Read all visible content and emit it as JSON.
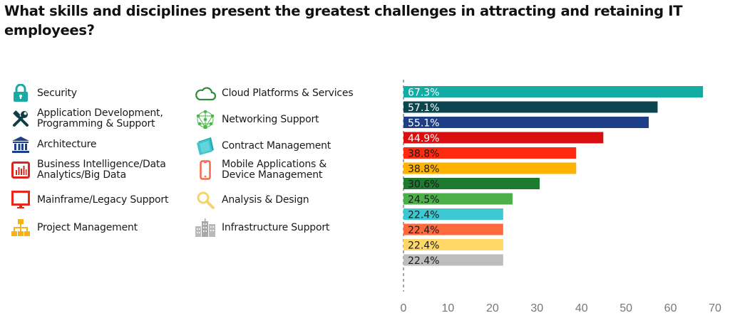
{
  "title": "What skills and disciplines present the greatest challenges in attracting and retaining IT employees?",
  "legend": [
    {
      "label": "Security",
      "icon": "lock-icon",
      "color": "#1aa9a3"
    },
    {
      "label": "Application Development,\nProgramming & Support",
      "icon": "tools-icon",
      "color": "#0d3f47"
    },
    {
      "label": "Architecture",
      "icon": "building-columns-icon",
      "color": "#1f3f8c"
    },
    {
      "label": "Business Intelligence/Data\nAnalytics/Big Data",
      "icon": "bar-chart-icon",
      "color": "#d9261c"
    },
    {
      "label": "Mainframe/Legacy Support",
      "icon": "monitor-icon",
      "color": "#e8261a"
    },
    {
      "label": "Project Management",
      "icon": "org-chart-icon",
      "color": "#f5b21b"
    },
    {
      "label": "Cloud Platforms & Services",
      "icon": "cloud-icon",
      "color": "#2e8b3a"
    },
    {
      "label": "Networking Support",
      "icon": "network-icon",
      "color": "#4cb84a"
    },
    {
      "label": "Contract Management",
      "icon": "documents-icon",
      "color": "#3ec6cf"
    },
    {
      "label": "Mobile Applications &\nDevice Management",
      "icon": "smartphone-icon",
      "color": "#f26b4a"
    },
    {
      "label": "Analysis & Design",
      "icon": "magnifier-icon",
      "color": "#f7d46b"
    },
    {
      "label": "Infrastructure Support",
      "icon": "city-buildings-icon",
      "color": "#b9b9b9"
    }
  ],
  "chart_data": {
    "type": "bar",
    "orientation": "horizontal",
    "title": "What skills and disciplines present the greatest challenges in attracting and retaining IT employees?",
    "xlabel": "",
    "ylabel": "",
    "xlim": [
      0,
      70
    ],
    "xticks": [
      0,
      10,
      20,
      30,
      40,
      50,
      60,
      70
    ],
    "grid": false,
    "legend_position": "left",
    "categories": [
      "Security",
      "Application Development, Programming & Support",
      "Architecture",
      "Business Intelligence/Data Analytics/Big Data",
      "Mainframe/Legacy Support",
      "Project Management",
      "Cloud Platforms & Services",
      "Networking Support",
      "Contract Management",
      "Mobile Applications & Device Management",
      "Analysis & Design",
      "Infrastructure Support"
    ],
    "values": [
      67.3,
      57.1,
      55.1,
      44.9,
      38.8,
      38.8,
      30.6,
      24.5,
      22.4,
      22.4,
      22.4,
      22.4
    ],
    "data_labels": [
      "67.3%",
      "57.1%",
      "55.1%",
      "44.9%",
      "38.8%",
      "38.8%",
      "30.6%",
      "24.5%",
      "22.4%",
      "22.4%",
      "22.4%",
      "22.4%"
    ],
    "colors": [
      "#13aca4",
      "#0b4650",
      "#1e3f86",
      "#d90f0f",
      "#ff2a10",
      "#ffb300",
      "#1e7a2e",
      "#4caf4a",
      "#3cc9d2",
      "#ff6a3d",
      "#ffd868",
      "#bdbdbd"
    ],
    "label_colors": [
      "#ffffff",
      "#ffffff",
      "#ffffff",
      "#ffffff",
      "#1a1a1a",
      "#1a1a1a",
      "#1a1a1a",
      "#1a1a1a",
      "#1a1a1a",
      "#1a1a1a",
      "#1a1a1a",
      "#1a1a1a"
    ]
  }
}
